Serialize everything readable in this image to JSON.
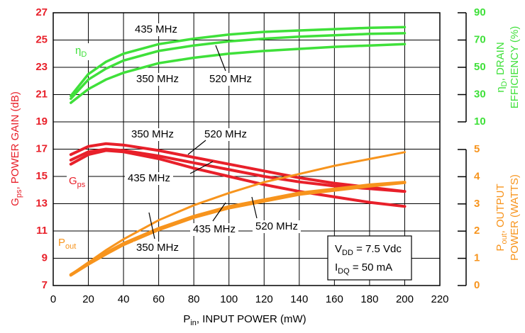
{
  "chart_data": {
    "type": "line",
    "x": [
      10,
      20,
      30,
      40,
      60,
      80,
      100,
      120,
      140,
      160,
      180,
      200
    ],
    "xlim": [
      0,
      220
    ],
    "xticks": [
      0,
      20,
      40,
      60,
      80,
      100,
      120,
      140,
      160,
      180,
      200,
      220
    ],
    "ylim": [
      7,
      27
    ],
    "yticks": [
      7,
      9,
      11,
      13,
      15,
      17,
      19,
      21,
      23,
      25,
      27
    ],
    "y2lim": [
      10,
      90
    ],
    "y2ticks": [
      10,
      30,
      50,
      70,
      90
    ],
    "y3lim": [
      0,
      5
    ],
    "y3ticks": [
      0,
      1,
      2,
      3,
      4,
      5
    ],
    "grid": true,
    "xlabel": {
      "text": "P",
      "sub": "in",
      "rest": ", INPUT POWER (mW)"
    },
    "ylabel": {
      "text": "G",
      "sub": "ps",
      "rest": ", POWER GAIN (dB)"
    },
    "y2label": {
      "text": "η",
      "sub": "D",
      "rest": ", DRAIN",
      "line2": "EFFICIENCY (%)"
    },
    "y3label": {
      "text": "P",
      "sub": "out",
      "rest": ", OUTPUT",
      "line2": "POWER (WATTS)"
    },
    "curve_labels": [
      {
        "text": "η",
        "sub": "D"
      },
      {
        "text": "G",
        "sub": "ps"
      },
      {
        "text": "P",
        "sub": "out"
      }
    ],
    "conditions": [
      {
        "text": "V",
        "sub": "DD",
        "rest": " = 7.5 Vdc"
      },
      {
        "text": "I",
        "sub": "DQ",
        "rest": " = 50 mA"
      }
    ],
    "series": [
      {
        "name": "435 MHz",
        "color": "#3fe03a",
        "axis": "y2",
        "values": [
          29,
          45,
          54,
          60,
          67,
          71,
          74,
          76,
          77,
          78,
          79,
          79.5
        ]
      },
      {
        "name": "520 MHz",
        "color": "#3fe03a",
        "axis": "y2",
        "values": [
          27,
          41,
          49,
          55,
          62,
          66,
          69,
          71,
          72.5,
          73.5,
          74.5,
          75
        ]
      },
      {
        "name": "350 MHz",
        "color": "#3fe03a",
        "axis": "y2",
        "values": [
          24,
          34,
          41,
          46,
          53,
          57,
          60,
          62,
          63.5,
          65,
          66,
          67
        ]
      },
      {
        "name": "350 MHz",
        "color": "#e8202a",
        "values": [
          16.6,
          17.2,
          17.4,
          17.3,
          16.9,
          16.4,
          15.9,
          15.4,
          14.9,
          14.5,
          14.2,
          13.9
        ]
      },
      {
        "name": "520 MHz",
        "color": "#e8202a",
        "values": [
          16.2,
          16.8,
          17.0,
          16.9,
          16.5,
          16.0,
          15.5,
          15.0,
          14.6,
          14.3,
          14.1,
          13.9
        ]
      },
      {
        "name": "435 MHz",
        "color": "#e8202a",
        "values": [
          15.9,
          16.6,
          16.9,
          16.8,
          16.3,
          15.6,
          15.0,
          14.4,
          13.9,
          13.5,
          13.1,
          12.8
        ]
      },
      {
        "name": "350 MHz",
        "color": "#f7941d",
        "axis": "y3",
        "values": [
          0.4,
          0.85,
          1.3,
          1.7,
          2.4,
          2.95,
          3.4,
          3.8,
          4.1,
          4.4,
          4.65,
          4.9
        ]
      },
      {
        "name": "435 MHz",
        "color": "#f7941d",
        "axis": "y3",
        "values": [
          0.4,
          0.8,
          1.2,
          1.55,
          2.1,
          2.55,
          2.9,
          3.15,
          3.4,
          3.55,
          3.7,
          3.8
        ]
      },
      {
        "name": "520 MHz",
        "color": "#f7941d",
        "axis": "y3",
        "values": [
          0.38,
          0.78,
          1.15,
          1.5,
          2.05,
          2.5,
          2.85,
          3.1,
          3.35,
          3.5,
          3.65,
          3.78
        ]
      }
    ]
  }
}
